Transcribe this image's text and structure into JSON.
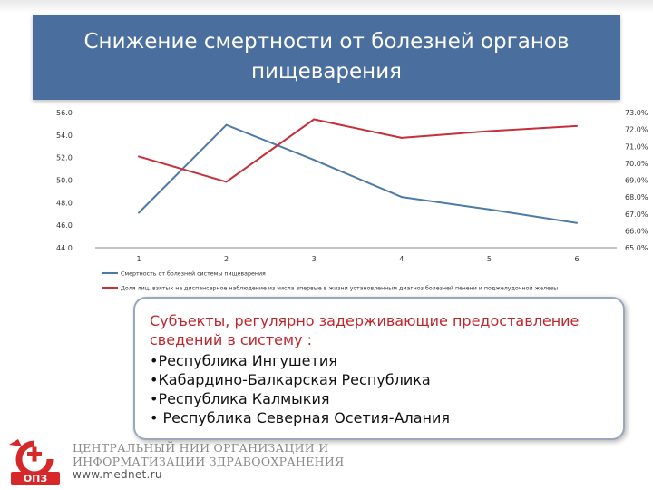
{
  "slide": {
    "title": "Снижение смертности от болезней органов пищеварения"
  },
  "chart_data": {
    "type": "line",
    "x": [
      1,
      2,
      3,
      4,
      5,
      6
    ],
    "xticks": [
      "1",
      "2",
      "3",
      "4",
      "5",
      "6"
    ],
    "y_left_ticks": [
      "44.0",
      "46.0",
      "48.0",
      "50.0",
      "52.0",
      "54.0",
      "56.0"
    ],
    "y_right_ticks": [
      "65.0%",
      "66.0%",
      "67.0%",
      "68.0%",
      "69.0%",
      "70.0%",
      "71.0%",
      "72.0%",
      "73.0%"
    ],
    "ylim_left": [
      44,
      56
    ],
    "ylim_right": [
      65,
      73
    ],
    "series": [
      {
        "name": "Смертность от болезней системы пищеварения",
        "axis": "left",
        "color": "#4e7aa6",
        "values": [
          47.1,
          54.9,
          51.8,
          48.5,
          47.4,
          46.2
        ]
      },
      {
        "name": "Доля лиц, взятых на диспансерное наблюдение из числа впервые в жизни установленным диагноз болезней печени и поджелудочной железы",
        "axis": "right",
        "color": "#c5303a",
        "values": [
          70.4,
          68.9,
          72.6,
          71.5,
          71.9,
          72.2
        ]
      }
    ],
    "legend_position": "bottom",
    "grid": false
  },
  "info_box": {
    "heading": "Субъекты, регулярно задерживающие предоставление сведений в систему :",
    "items": [
      "Республика Ингушетия",
      "Кабардино-Балкарская Республика",
      "Республика Калмыкия",
      " Республика Северная Осетия-Алания"
    ]
  },
  "footer": {
    "org_line1": "ЦЕНТРАЛЬНЫЙ НИИ ОРГАНИЗАЦИИ И",
    "org_line2": "ИНФОРМАТИЗАЦИИ ЗДРАВООХРАНЕНИЯ",
    "url": "www.mednet.ru",
    "logo_text": "ОПЗ",
    "logo_icon": "cniioiz-logo-icon"
  }
}
